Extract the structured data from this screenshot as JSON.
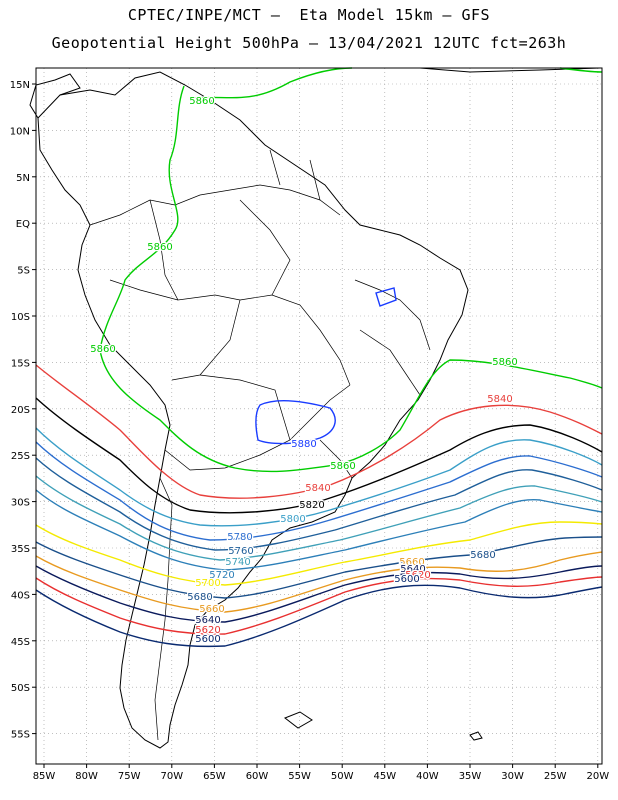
{
  "title_line1": "CPTEC/INPE/MCT –  Eta Model 15km – GFS",
  "title_line2": "Geopotential Height 500hPa – 13/04/2021 12UTC fct=263h",
  "axes": {
    "lon_ticks": [
      "85W",
      "80W",
      "75W",
      "70W",
      "65W",
      "60W",
      "55W",
      "50W",
      "45W",
      "40W",
      "35W",
      "30W",
      "25W",
      "20W"
    ],
    "lat_ticks": [
      "15N",
      "10N",
      "5N",
      "EQ",
      "5S",
      "10S",
      "15S",
      "20S",
      "25S",
      "30S",
      "35S",
      "40S",
      "45S",
      "50S",
      "55S"
    ]
  },
  "contours": [
    {
      "value": "5860",
      "color": "#00cc00"
    },
    {
      "value": "5880",
      "color": "#1a3cff"
    },
    {
      "value": "5840",
      "color": "#e8403c"
    },
    {
      "value": "5820",
      "color": "#000000"
    },
    {
      "value": "5800",
      "color": "#3a9fc8"
    },
    {
      "value": "5780",
      "color": "#2c6ed0"
    },
    {
      "value": "5760",
      "color": "#1f5f9a"
    },
    {
      "value": "5740",
      "color": "#3fa0b8"
    },
    {
      "value": "5720",
      "color": "#2c7fb8"
    },
    {
      "value": "5700",
      "color": "#f4ea00"
    },
    {
      "value": "5680",
      "color": "#1a4f8a"
    },
    {
      "value": "5660",
      "color": "#e89a20"
    },
    {
      "value": "5640",
      "color": "#0a1a5c"
    },
    {
      "value": "5620",
      "color": "#e83030"
    },
    {
      "value": "5600",
      "color": "#0a2a70"
    }
  ],
  "labels": [
    {
      "text": "5860",
      "c": 0
    },
    {
      "text": "5860",
      "c": 0
    },
    {
      "text": "5860",
      "c": 0
    },
    {
      "text": "5860",
      "c": 0
    },
    {
      "text": "5860",
      "c": 0
    },
    {
      "text": "5880",
      "c": 1
    },
    {
      "text": "5840",
      "c": 2
    },
    {
      "text": "5840",
      "c": 2
    },
    {
      "text": "5820",
      "c": 3
    },
    {
      "text": "5800",
      "c": 4
    },
    {
      "text": "5780",
      "c": 5
    },
    {
      "text": "5760",
      "c": 6
    },
    {
      "text": "5740",
      "c": 7
    },
    {
      "text": "5720",
      "c": 8
    },
    {
      "text": "5700",
      "c": 9
    },
    {
      "text": "5680",
      "c": 10
    },
    {
      "text": "5680",
      "c": 10
    },
    {
      "text": "5660",
      "c": 11
    },
    {
      "text": "5660",
      "c": 11
    },
    {
      "text": "5640",
      "c": 12
    },
    {
      "text": "5640",
      "c": 12
    },
    {
      "text": "5620",
      "c": 13
    },
    {
      "text": "5620",
      "c": 13
    },
    {
      "text": "5600",
      "c": 14
    },
    {
      "text": "5600",
      "c": 14
    }
  ]
}
